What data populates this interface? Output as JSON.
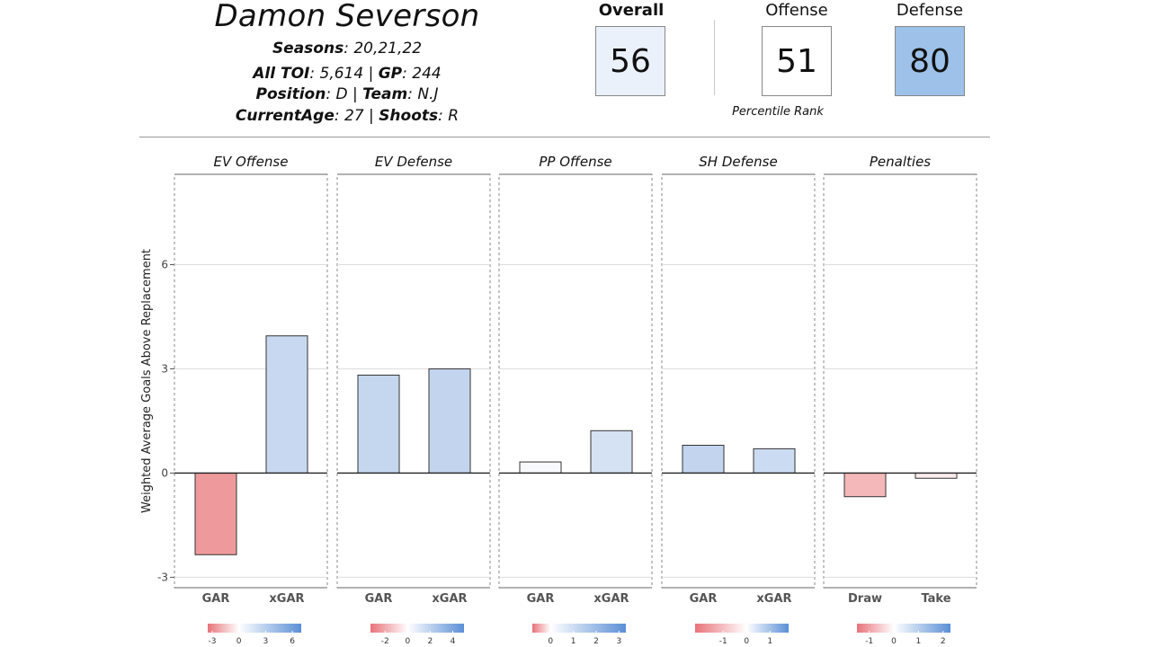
{
  "header": {
    "player_name": "Damon Severson",
    "seasons_label": "Seasons",
    "seasons_value": ": 20,21,22",
    "toi_label": "All TOI",
    "toi_value": ": 5,614 | ",
    "gp_label": "GP",
    "gp_value": ": 244",
    "position_label": "Position",
    "position_value": ": D | ",
    "team_label": "Team",
    "team_value": ": N.J",
    "age_label": "CurrentAge",
    "age_value": ": 27 | ",
    "shoots_label": "Shoots",
    "shoots_value": ": R"
  },
  "ratings": {
    "overall": {
      "label": "Overall",
      "value": "56",
      "color": "#eaf1fa"
    },
    "offense": {
      "label": "Offense",
      "value": "51",
      "color": "#ffffff"
    },
    "defense": {
      "label": "Defense",
      "value": "80",
      "color": "#9dc1e8"
    },
    "percentile_label": "Percentile Rank"
  },
  "chart_data": {
    "type": "bar",
    "ylabel": "Weighted Average Goals Above Replacement",
    "ylim": [
      -3.3,
      8.6
    ],
    "yticks": [
      -3,
      0,
      3,
      6
    ],
    "grid": true,
    "panels": [
      {
        "title": "EV Offense",
        "categories": [
          "GAR",
          "xGAR"
        ],
        "values": [
          -2.35,
          3.95
        ],
        "colors": [
          "#ee9a9c",
          "#c8d8f0"
        ],
        "legend": {
          "ticks": [
            "-3",
            "0",
            "3",
            "6"
          ],
          "range": [
            -3.5,
            7
          ]
        }
      },
      {
        "title": "EV Defense",
        "categories": [
          "GAR",
          "xGAR"
        ],
        "values": [
          2.82,
          3.0
        ],
        "colors": [
          "#c5d6ef",
          "#c3d4ee"
        ],
        "legend": {
          "ticks": [
            "-2",
            "0",
            "2",
            "4"
          ],
          "range": [
            -3.3,
            5
          ]
        }
      },
      {
        "title": "PP Offense",
        "categories": [
          "GAR",
          "xGAR"
        ],
        "values": [
          0.32,
          1.22
        ],
        "colors": [
          "#f7f9fd",
          "#d5e2f4"
        ],
        "legend": {
          "ticks": [
            "0",
            "1",
            "2",
            "3"
          ],
          "range": [
            -0.8,
            3.3
          ]
        }
      },
      {
        "title": "SH Defense",
        "categories": [
          "GAR",
          "xGAR"
        ],
        "values": [
          0.8,
          0.7
        ],
        "colors": [
          "#c2d4ee",
          "#cbdbf1"
        ],
        "legend": {
          "ticks": [
            "-1",
            "0",
            "1"
          ],
          "range": [
            -2.2,
            1.8
          ]
        }
      },
      {
        "title": "Penalties",
        "categories": [
          "Draw",
          "Take"
        ],
        "values": [
          -0.68,
          -0.15
        ],
        "colors": [
          "#f4b8ba",
          "#fbeced"
        ],
        "legend": {
          "ticks": [
            "-1",
            "0",
            "1",
            "2"
          ],
          "range": [
            -1.5,
            2.3
          ]
        }
      }
    ]
  }
}
